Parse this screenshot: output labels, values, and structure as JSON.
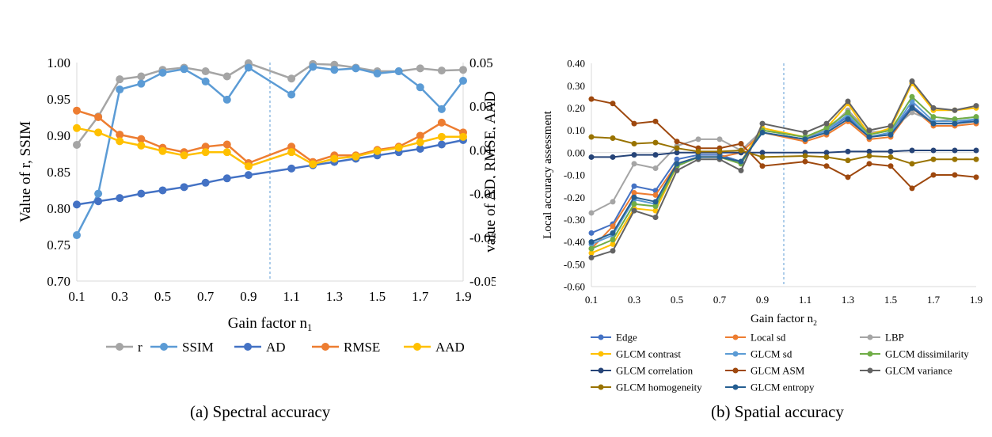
{
  "captions": {
    "a": "(a) Spectral accuracy",
    "b": "(b) Spatial accuracy"
  },
  "chart_data": [
    {
      "type": "line",
      "x": [
        0.1,
        0.2,
        0.3,
        0.4,
        0.5,
        0.6,
        0.7,
        0.8,
        0.9,
        1.1,
        1.2,
        1.3,
        1.4,
        1.5,
        1.6,
        1.7,
        1.8,
        1.9
      ],
      "xticks": [
        "0.1",
        "0.3",
        "0.5",
        "0.7",
        "0.9",
        "1.1",
        "1.3",
        "1.5",
        "1.7",
        "1.9"
      ],
      "xlabel": "Gain factor n",
      "xlabel_sub": "1",
      "ylabel": "Value of r, SSIM",
      "ylim": [
        0.7,
        1.0
      ],
      "yticks": [
        "0.70",
        "0.75",
        "0.80",
        "0.85",
        "0.90",
        "0.95",
        "1.00"
      ],
      "ylabel_right": "value of AD, RMSE, AAD",
      "ylim_right": [
        -0.05,
        0.05
      ],
      "yticks_right": [
        "-0.05",
        "-0.03",
        "-0.01",
        "0.01",
        "0.03",
        "0.05"
      ],
      "reference_line_x": 1.0,
      "grid": false,
      "legend": "bottom",
      "series": [
        {
          "name": "r",
          "axis": "left",
          "color": "#a5a5a5",
          "values": [
            0.887,
            0.926,
            0.977,
            0.981,
            0.99,
            0.993,
            0.988,
            0.981,
            0.999,
            0.978,
            0.998,
            0.997,
            0.993,
            0.988,
            0.988,
            0.992,
            0.989,
            0.99
          ]
        },
        {
          "name": "SSIM",
          "axis": "left",
          "color": "#5b9bd5",
          "values": [
            0.763,
            0.82,
            0.963,
            0.971,
            0.986,
            0.991,
            0.974,
            0.949,
            0.993,
            0.956,
            0.994,
            0.99,
            0.992,
            0.985,
            0.988,
            0.966,
            0.936,
            0.975
          ]
        },
        {
          "name": "AD",
          "axis": "right",
          "color": "#4472c4",
          "values": [
            -0.015,
            -0.0135,
            -0.012,
            -0.01,
            -0.0085,
            -0.007,
            -0.005,
            -0.003,
            -0.0015,
            0.0015,
            0.003,
            0.0045,
            0.006,
            0.0075,
            0.009,
            0.0105,
            0.0125,
            0.0145
          ]
        },
        {
          "name": "RMSE",
          "axis": "right",
          "color": "#ed7d31",
          "values": [
            0.028,
            0.025,
            0.017,
            0.015,
            0.011,
            0.009,
            0.0115,
            0.0125,
            0.004,
            0.0115,
            0.0045,
            0.0075,
            0.0075,
            0.01,
            0.0115,
            0.0165,
            0.0225,
            0.018
          ]
        },
        {
          "name": "AAD",
          "axis": "right",
          "color": "#ffc000",
          "values": [
            0.02,
            0.018,
            0.014,
            0.012,
            0.0095,
            0.0075,
            0.009,
            0.009,
            0.0025,
            0.009,
            0.0035,
            0.006,
            0.007,
            0.0095,
            0.011,
            0.0135,
            0.016,
            0.016
          ]
        }
      ]
    },
    {
      "type": "line",
      "x": [
        0.1,
        0.2,
        0.3,
        0.4,
        0.5,
        0.6,
        0.7,
        0.8,
        0.9,
        1.1,
        1.2,
        1.3,
        1.4,
        1.5,
        1.6,
        1.7,
        1.8,
        1.9
      ],
      "xticks": [
        "0.1",
        "0.3",
        "0.5",
        "0.7",
        "0.9",
        "1.1",
        "1.3",
        "1.5",
        "1.7",
        "1.9"
      ],
      "xlabel": "Gain factor n",
      "xlabel_sub": "2",
      "ylabel": "Local accuracy assessment",
      "ylim": [
        -0.6,
        0.4
      ],
      "yticks": [
        "-0.60",
        "-0.50",
        "-0.40",
        "-0.30",
        "-0.20",
        "-0.10",
        "0.00",
        "0.10",
        "0.20",
        "0.30",
        "0.40"
      ],
      "reference_line_x": 1.0,
      "grid": false,
      "legend": "bottom",
      "series": [
        {
          "name": "Edge",
          "color": "#4472c4",
          "values": [
            -0.36,
            -0.32,
            -0.15,
            -0.17,
            -0.03,
            -0.01,
            -0.01,
            -0.04,
            0.09,
            0.06,
            0.1,
            0.16,
            0.07,
            0.09,
            0.21,
            0.13,
            0.13,
            0.15
          ]
        },
        {
          "name": "Local sd",
          "color": "#ed7d31",
          "values": [
            -0.43,
            -0.33,
            -0.18,
            -0.19,
            -0.05,
            -0.02,
            -0.02,
            0.0,
            0.09,
            0.05,
            0.08,
            0.14,
            0.06,
            0.07,
            0.2,
            0.12,
            0.12,
            0.13
          ]
        },
        {
          "name": "LBP",
          "color": "#a5a5a5",
          "values": [
            -0.27,
            -0.22,
            -0.05,
            -0.07,
            0.03,
            0.06,
            0.06,
            0.01,
            0.1,
            0.07,
            0.1,
            0.19,
            0.09,
            0.1,
            0.18,
            0.14,
            0.15,
            0.16
          ]
        },
        {
          "name": "GLCM contrast",
          "color": "#ffc000",
          "values": [
            -0.45,
            -0.41,
            -0.25,
            -0.26,
            -0.06,
            -0.02,
            -0.02,
            -0.04,
            0.11,
            0.07,
            0.11,
            0.22,
            0.08,
            0.11,
            0.31,
            0.19,
            0.19,
            0.2
          ]
        },
        {
          "name": "GLCM sd",
          "color": "#5b9bd5",
          "values": [
            -0.41,
            -0.37,
            -0.21,
            -0.23,
            -0.06,
            -0.02,
            -0.02,
            -0.04,
            0.09,
            0.06,
            0.1,
            0.17,
            0.07,
            0.09,
            0.23,
            0.14,
            0.14,
            0.15
          ]
        },
        {
          "name": "GLCM dissimilarity",
          "color": "#70ad47",
          "values": [
            -0.43,
            -0.39,
            -0.23,
            -0.24,
            -0.06,
            -0.02,
            -0.02,
            -0.05,
            0.1,
            0.07,
            0.11,
            0.18,
            0.08,
            0.1,
            0.25,
            0.16,
            0.15,
            0.16
          ]
        },
        {
          "name": "GLCM correlation",
          "color": "#264478",
          "values": [
            -0.02,
            -0.02,
            -0.01,
            -0.01,
            0.0,
            0.0,
            0.0,
            0.0,
            0.0,
            0.0,
            0.0,
            0.005,
            0.005,
            0.005,
            0.01,
            0.01,
            0.01,
            0.01
          ]
        },
        {
          "name": "GLCM ASM",
          "color": "#9e480e",
          "values": [
            0.24,
            0.22,
            0.13,
            0.14,
            0.05,
            0.02,
            0.02,
            0.04,
            -0.06,
            -0.04,
            -0.06,
            -0.11,
            -0.05,
            -0.06,
            -0.16,
            -0.1,
            -0.1,
            -0.11
          ]
        },
        {
          "name": "GLCM variance",
          "color": "#636363",
          "values": [
            -0.47,
            -0.44,
            -0.26,
            -0.29,
            -0.08,
            -0.03,
            -0.03,
            -0.08,
            0.13,
            0.09,
            0.13,
            0.23,
            0.1,
            0.12,
            0.32,
            0.2,
            0.19,
            0.21
          ]
        },
        {
          "name": "GLCM homogeneity",
          "color": "#997300",
          "values": [
            0.07,
            0.065,
            0.04,
            0.045,
            0.02,
            0.005,
            0.005,
            0.01,
            -0.02,
            -0.015,
            -0.02,
            -0.035,
            -0.015,
            -0.02,
            -0.05,
            -0.03,
            -0.03,
            -0.03
          ]
        },
        {
          "name": "GLCM entropy",
          "color": "#255e91",
          "values": [
            -0.4,
            -0.36,
            -0.2,
            -0.22,
            -0.05,
            -0.02,
            -0.02,
            -0.04,
            0.09,
            0.06,
            0.09,
            0.15,
            0.07,
            0.08,
            0.2,
            0.13,
            0.13,
            0.14
          ]
        }
      ]
    }
  ]
}
